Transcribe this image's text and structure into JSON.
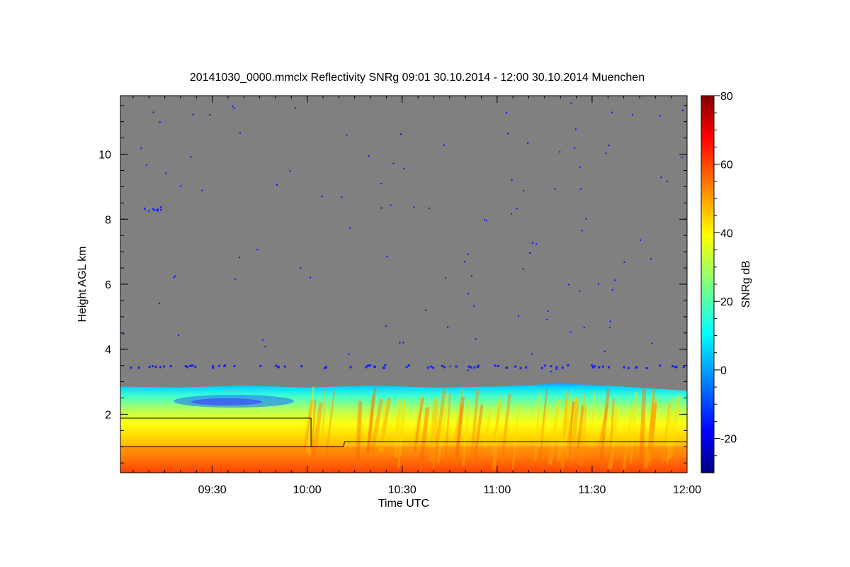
{
  "chart_data": {
    "type": "heatmap",
    "title": "20141030_0000.mmclx Reflectivity SNRg   09:01 30.10.2014 - 12:00 30.10.2014 Muenchen",
    "xlabel": "Time UTC",
    "ylabel": "Height AGL km",
    "colorbar_label": "SNRg dB",
    "x_range_minutes_utc": [
      541,
      720
    ],
    "y_range_km": [
      0.2,
      11.8
    ],
    "x_ticks": [
      {
        "value": 570,
        "label": "09:30"
      },
      {
        "value": 600,
        "label": "10:00"
      },
      {
        "value": 630,
        "label": "10:30"
      },
      {
        "value": 660,
        "label": "11:00"
      },
      {
        "value": 690,
        "label": "11:30"
      },
      {
        "value": 720,
        "label": "12:00"
      }
    ],
    "y_ticks": [
      {
        "value": 2,
        "label": "2"
      },
      {
        "value": 4,
        "label": "4"
      },
      {
        "value": 6,
        "label": "6"
      },
      {
        "value": 8,
        "label": "8"
      },
      {
        "value": 10,
        "label": "10"
      }
    ],
    "colorbar_range": [
      -30,
      80
    ],
    "colorbar_ticks": [
      {
        "value": -20,
        "label": "-20"
      },
      {
        "value": 0,
        "label": "0"
      },
      {
        "value": 20,
        "label": "20"
      },
      {
        "value": 40,
        "label": "40"
      },
      {
        "value": 60,
        "label": "60"
      },
      {
        "value": 80,
        "label": "80"
      }
    ],
    "background_color": "#808080",
    "colormap": [
      "#00007f",
      "#0000ff",
      "#007fff",
      "#00ffff",
      "#7fff7f",
      "#ffff00",
      "#ff7f00",
      "#ff0000",
      "#7f0000"
    ],
    "echo_top_km": [
      {
        "time": 541,
        "top": 2.85
      },
      {
        "time": 560,
        "top": 2.82
      },
      {
        "time": 580,
        "top": 2.88
      },
      {
        "time": 600,
        "top": 2.82
      },
      {
        "time": 620,
        "top": 2.88
      },
      {
        "time": 640,
        "top": 2.82
      },
      {
        "time": 660,
        "top": 2.85
      },
      {
        "time": 680,
        "top": 2.95
      },
      {
        "time": 700,
        "top": 2.85
      },
      {
        "time": 720,
        "top": 2.72
      }
    ],
    "line_series": [
      {
        "x": [
          541,
          601.2,
          601.2
        ],
        "y": [
          1.88,
          1.88,
          1.0
        ]
      },
      {
        "x": [
          541,
          601.2,
          611.5,
          611.8,
          720
        ],
        "y": [
          1.0,
          1.0,
          1.0,
          1.15,
          1.15
        ]
      }
    ]
  }
}
